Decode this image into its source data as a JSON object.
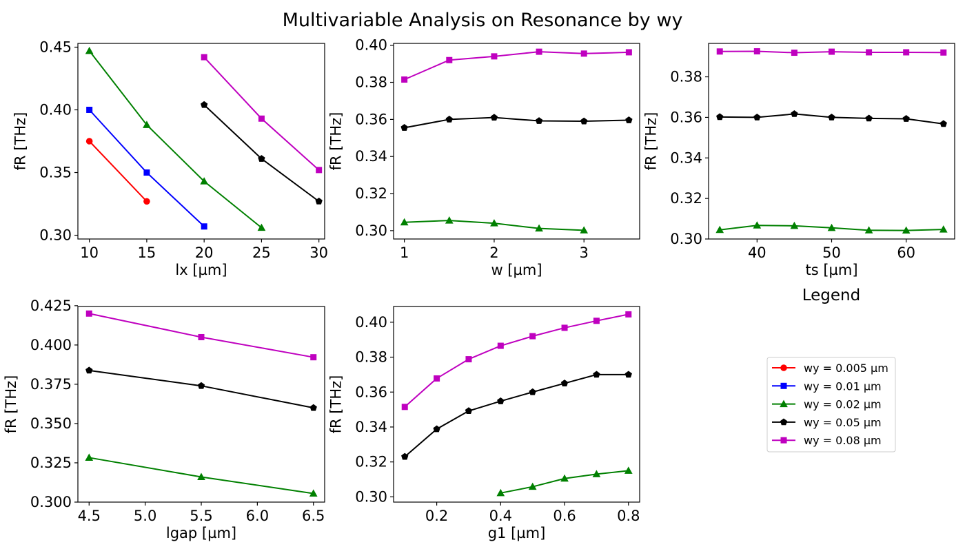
{
  "figure": {
    "title": "Multivariable Analysis on Resonance by wy",
    "legend_title": "Legend"
  },
  "legend": {
    "entries": [
      {
        "label": "wy = 0.005 µm",
        "color": "#ff0000",
        "marker": "circle"
      },
      {
        "label": "wy = 0.01 µm",
        "color": "#0000ff",
        "marker": "square"
      },
      {
        "label": "wy = 0.02 µm",
        "color": "#008000",
        "marker": "triangle"
      },
      {
        "label": "wy = 0.05 µm",
        "color": "#000000",
        "marker": "pentagon"
      },
      {
        "label": "wy = 0.08 µm",
        "color": "#bf00bf",
        "marker": "square"
      }
    ]
  },
  "chart_data": [
    {
      "type": "line",
      "xlabel": "lx [µm]",
      "ylabel": "fR [THz]",
      "xlim": [
        9,
        30.5
      ],
      "ylim": [
        0.297,
        0.453
      ],
      "xticks": [
        10,
        15,
        20,
        25,
        30
      ],
      "xtick_labels": [
        "10",
        "15",
        "20",
        "25",
        "30"
      ],
      "yticks": [
        0.3,
        0.35,
        0.4,
        0.45
      ],
      "ytick_labels": [
        "0.30",
        "0.35",
        "0.40",
        "0.45"
      ],
      "series": [
        {
          "name": "wy = 0.005 µm",
          "color": "#ff0000",
          "marker": "circle",
          "x": [
            10,
            15
          ],
          "y": [
            0.375,
            0.327
          ]
        },
        {
          "name": "wy = 0.01 µm",
          "color": "#0000ff",
          "marker": "square",
          "x": [
            10,
            15,
            20
          ],
          "y": [
            0.4,
            0.35,
            0.307
          ]
        },
        {
          "name": "wy = 0.02 µm",
          "color": "#008000",
          "marker": "triangle",
          "x": [
            10,
            15,
            20,
            25
          ],
          "y": [
            0.447,
            0.388,
            0.343,
            0.306
          ]
        },
        {
          "name": "wy = 0.05 µm",
          "color": "#000000",
          "marker": "pentagon",
          "x": [
            20,
            25,
            30
          ],
          "y": [
            0.404,
            0.361,
            0.327
          ]
        },
        {
          "name": "wy = 0.08 µm",
          "color": "#bf00bf",
          "marker": "square",
          "x": [
            20,
            25,
            30
          ],
          "y": [
            0.442,
            0.393,
            0.352
          ]
        }
      ]
    },
    {
      "type": "line",
      "xlabel": "w [µm]",
      "ylabel": "fR [THz]",
      "xlim": [
        0.88,
        3.62
      ],
      "ylim": [
        0.2955,
        0.401
      ],
      "xticks": [
        1,
        2,
        3
      ],
      "xtick_labels": [
        "1",
        "2",
        "3"
      ],
      "yticks": [
        0.3,
        0.32,
        0.34,
        0.36,
        0.38,
        0.4
      ],
      "ytick_labels": [
        "0.30",
        "0.32",
        "0.34",
        "0.36",
        "0.38",
        "0.40"
      ],
      "series": [
        {
          "name": "wy = 0.02 µm",
          "color": "#008000",
          "marker": "triangle",
          "x": [
            1,
            1.5,
            2,
            2.5,
            3
          ],
          "y": [
            0.3045,
            0.3055,
            0.304,
            0.3012,
            0.3002
          ]
        },
        {
          "name": "wy = 0.05 µm",
          "color": "#000000",
          "marker": "pentagon",
          "x": [
            1,
            1.5,
            2,
            2.5,
            3,
            3.5
          ],
          "y": [
            0.3555,
            0.36,
            0.361,
            0.3592,
            0.359,
            0.3596
          ]
        },
        {
          "name": "wy = 0.08 µm",
          "color": "#bf00bf",
          "marker": "square",
          "x": [
            1,
            1.5,
            2,
            2.5,
            3,
            3.5
          ],
          "y": [
            0.3815,
            0.392,
            0.394,
            0.3965,
            0.3955,
            0.3962
          ]
        }
      ]
    },
    {
      "type": "line",
      "xlabel": "ts [µm]",
      "ylabel": "fR [THz]",
      "xlim": [
        33.5,
        66.5
      ],
      "ylim": [
        0.3,
        0.3965
      ],
      "xticks": [
        40,
        50,
        60
      ],
      "xtick_labels": [
        "40",
        "50",
        "60"
      ],
      "yticks": [
        0.3,
        0.32,
        0.34,
        0.36,
        0.38
      ],
      "ytick_labels": [
        "0.30",
        "0.32",
        "0.34",
        "0.36",
        "0.38"
      ],
      "series": [
        {
          "name": "wy = 0.02 µm",
          "color": "#008000",
          "marker": "triangle",
          "x": [
            35,
            40,
            45,
            50,
            55,
            60,
            65
          ],
          "y": [
            0.3045,
            0.3067,
            0.3065,
            0.3055,
            0.3043,
            0.3042,
            0.3047
          ]
        },
        {
          "name": "wy = 0.05 µm",
          "color": "#000000",
          "marker": "pentagon",
          "x": [
            35,
            40,
            45,
            50,
            55,
            60,
            65
          ],
          "y": [
            0.3602,
            0.36,
            0.3617,
            0.36,
            0.3595,
            0.3593,
            0.3568
          ]
        },
        {
          "name": "wy = 0.08 µm",
          "color": "#bf00bf",
          "marker": "square",
          "x": [
            35,
            40,
            45,
            50,
            55,
            60,
            65
          ],
          "y": [
            0.3925,
            0.3926,
            0.3919,
            0.3924,
            0.3921,
            0.3921,
            0.392
          ]
        }
      ]
    },
    {
      "type": "line",
      "xlabel": "lgap [µm]",
      "ylabel": "fR [THz]",
      "xlim": [
        4.4,
        6.6
      ],
      "ylim": [
        0.3,
        0.4245
      ],
      "xticks": [
        4.5,
        5.0,
        5.5,
        6.0,
        6.5
      ],
      "xtick_labels": [
        "4.5",
        "5.0",
        "5.5",
        "6.0",
        "6.5"
      ],
      "yticks": [
        0.3,
        0.325,
        0.35,
        0.375,
        0.4,
        0.425
      ],
      "ytick_labels": [
        "0.300",
        "0.325",
        "0.350",
        "0.375",
        "0.400",
        "0.425"
      ],
      "series": [
        {
          "name": "wy = 0.02 µm",
          "color": "#008000",
          "marker": "triangle",
          "x": [
            4.5,
            5.5,
            6.5
          ],
          "y": [
            0.3283,
            0.316,
            0.3055
          ]
        },
        {
          "name": "wy = 0.05 µm",
          "color": "#000000",
          "marker": "pentagon",
          "x": [
            4.5,
            5.5,
            6.5
          ],
          "y": [
            0.3838,
            0.374,
            0.36
          ]
        },
        {
          "name": "wy = 0.08 µm",
          "color": "#bf00bf",
          "marker": "square",
          "x": [
            4.5,
            5.5,
            6.5
          ],
          "y": [
            0.42,
            0.405,
            0.3922
          ]
        }
      ]
    },
    {
      "type": "line",
      "xlabel": "g1 [µm]",
      "ylabel": "fR [THz]",
      "xlim": [
        0.065,
        0.835
      ],
      "ylim": [
        0.297,
        0.409
      ],
      "xticks": [
        0.2,
        0.4,
        0.6,
        0.8
      ],
      "xtick_labels": [
        "0.2",
        "0.4",
        "0.6",
        "0.8"
      ],
      "yticks": [
        0.3,
        0.32,
        0.34,
        0.36,
        0.38,
        0.4
      ],
      "ytick_labels": [
        "0.30",
        "0.32",
        "0.34",
        "0.36",
        "0.38",
        "0.40"
      ],
      "series": [
        {
          "name": "wy = 0.02 µm",
          "color": "#008000",
          "marker": "triangle",
          "x": [
            0.4,
            0.5,
            0.6,
            0.7,
            0.8
          ],
          "y": [
            0.3022,
            0.3058,
            0.3105,
            0.313,
            0.315
          ]
        },
        {
          "name": "wy = 0.05 µm",
          "color": "#000000",
          "marker": "pentagon",
          "x": [
            0.1,
            0.2,
            0.3,
            0.4,
            0.5,
            0.6,
            0.7,
            0.8
          ],
          "y": [
            0.323,
            0.3388,
            0.3492,
            0.3548,
            0.36,
            0.365,
            0.37,
            0.37
          ]
        },
        {
          "name": "wy = 0.08 µm",
          "color": "#bf00bf",
          "marker": "square",
          "x": [
            0.1,
            0.2,
            0.3,
            0.4,
            0.5,
            0.6,
            0.7,
            0.8
          ],
          "y": [
            0.3515,
            0.3678,
            0.3788,
            0.3865,
            0.392,
            0.3968,
            0.4008,
            0.4045
          ]
        }
      ]
    }
  ]
}
